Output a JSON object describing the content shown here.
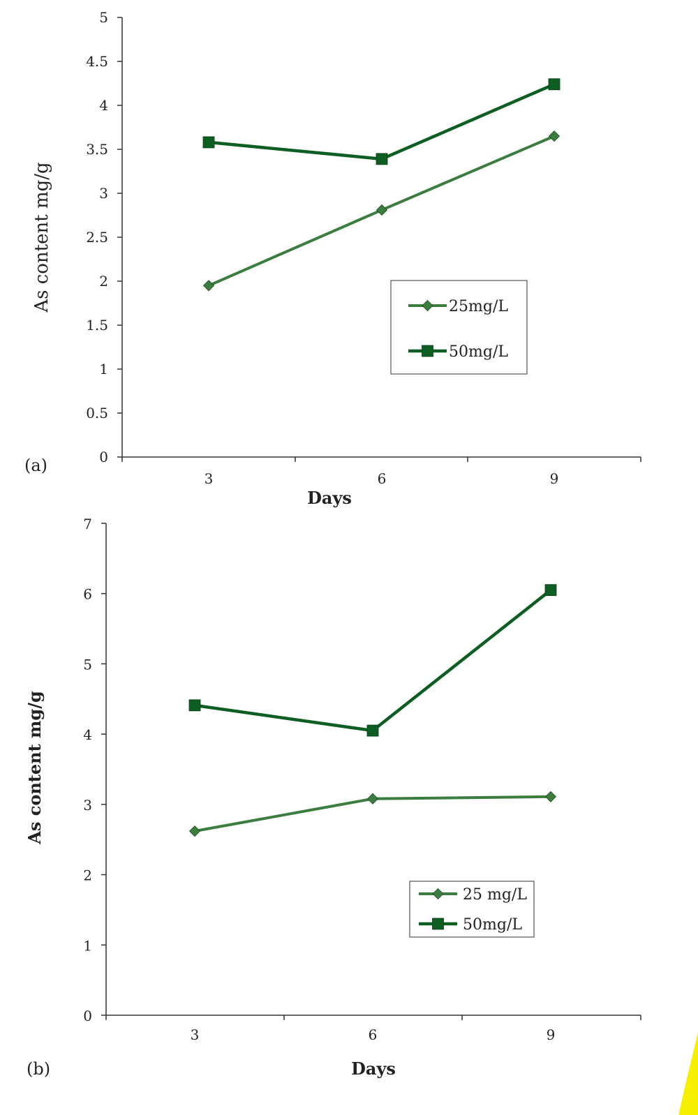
{
  "colors": {
    "series_25": "#3a7d3e",
    "series_50": "#0d5e22",
    "axis": "#333333",
    "edge_mark": "#f7ef00"
  },
  "chart_data": [
    {
      "panel_label": "(a)",
      "type": "line",
      "categories": [
        "3",
        "6",
        "9"
      ],
      "xlabel": "Days",
      "ylabel": "As content mg/g",
      "ylim": [
        0,
        5
      ],
      "yticks": [
        "0",
        "0.5",
        "1",
        "1.5",
        "2",
        "2.5",
        "3",
        "3.5",
        "4",
        "4.5",
        "5"
      ],
      "grid": false,
      "legend_position": "right-middle",
      "series": [
        {
          "name": "25mg/L",
          "marker": "diamond",
          "values": [
            1.95,
            2.81,
            3.65
          ]
        },
        {
          "name": "50mg/L",
          "marker": "square",
          "values": [
            3.58,
            3.39,
            4.24
          ]
        }
      ]
    },
    {
      "panel_label": "(b)",
      "type": "line",
      "categories": [
        "3",
        "6",
        "9"
      ],
      "xlabel": "Days",
      "ylabel": "As content mg/g",
      "ylim": [
        0,
        7
      ],
      "yticks": [
        "0",
        "1",
        "2",
        "3",
        "4",
        "5",
        "6",
        "7"
      ],
      "grid": false,
      "legend_position": "right-lower",
      "series": [
        {
          "name": "25 mg/L",
          "marker": "diamond",
          "values": [
            2.62,
            3.08,
            3.11
          ]
        },
        {
          "name": "50mg/L",
          "marker": "square",
          "values": [
            4.41,
            4.05,
            6.05
          ]
        }
      ]
    }
  ]
}
